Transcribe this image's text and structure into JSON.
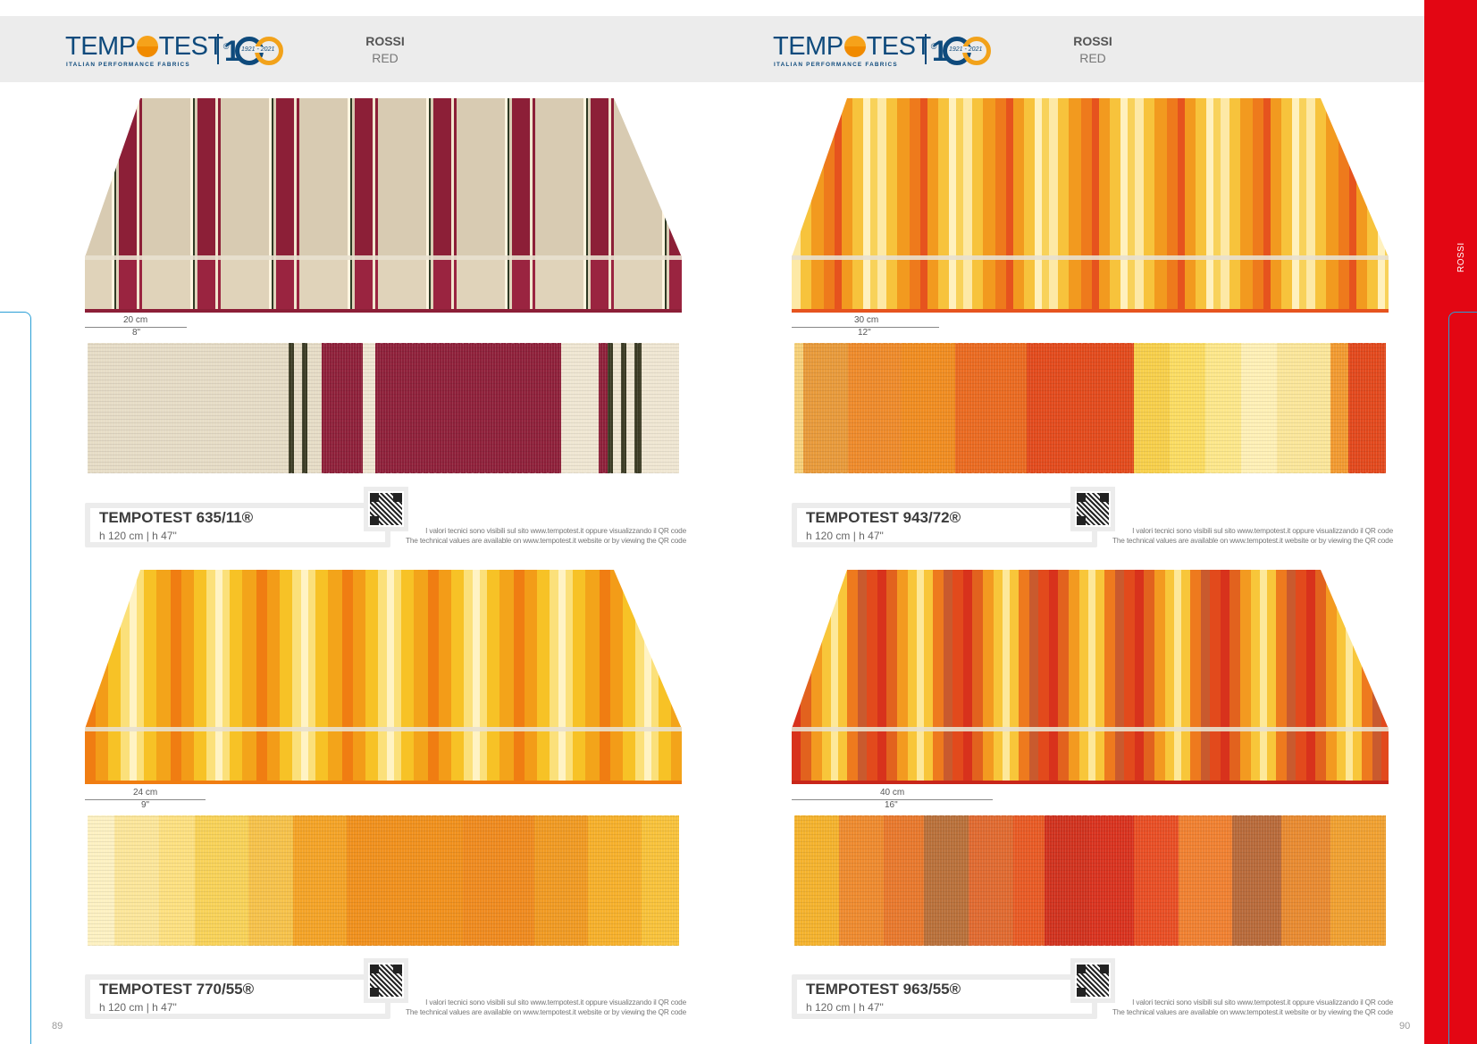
{
  "brand": {
    "wordmark": "TEMPOTEST",
    "tagline": "ITALIAN PERFORMANCE FABRICS",
    "anniversary": "1921 - 2021",
    "registered": "®"
  },
  "category": {
    "it": "ROSSI",
    "en": "RED"
  },
  "sidebar_label": "ROSSI",
  "pages": {
    "left": "89",
    "right": "90"
  },
  "note": {
    "it": "I valori tecnici sono visibili sul sito www.tempotest.it oppure visualizzando il QR code",
    "en": "The technical values are available on www.tempotest.it website or by viewing the QR code"
  },
  "products": [
    {
      "name": "TEMPOTEST 635/11®",
      "size": "h 120 cm | h 47\"",
      "repeat_cm": "20 cm",
      "repeat_in": "8\""
    },
    {
      "name": "TEMPOTEST 943/72®",
      "size": "h 120 cm | h 47\"",
      "repeat_cm": "30 cm",
      "repeat_in": "12\""
    },
    {
      "name": "TEMPOTEST 770/55®",
      "size": "h 120 cm | h 47\"",
      "repeat_cm": "24 cm",
      "repeat_in": "9\""
    },
    {
      "name": "TEMPOTEST 963/55®",
      "size": "h 120 cm | h 47\"",
      "repeat_cm": "40 cm",
      "repeat_in": "16\""
    }
  ],
  "colors": {
    "accent_red": "#e30613",
    "brand_blue": "#0e4a7c",
    "brand_orange": "#f2a21a",
    "tab_blue": "#2a9fd6"
  }
}
